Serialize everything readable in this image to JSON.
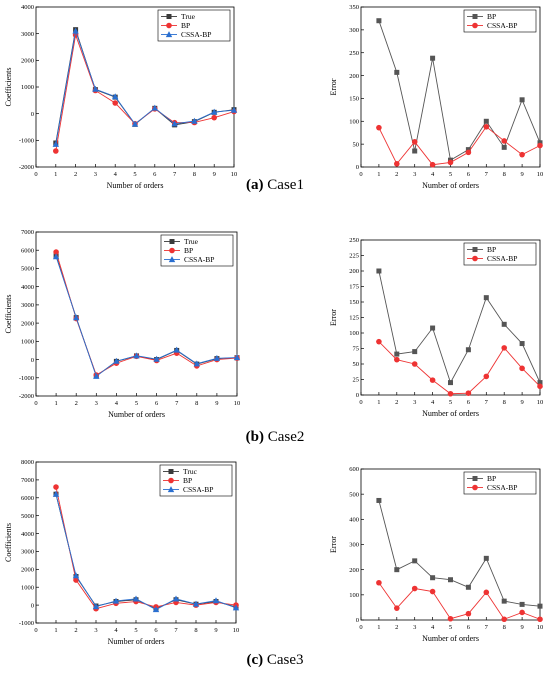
{
  "captions": [
    {
      "letter": "(a)",
      "text": " Case1"
    },
    {
      "letter": "(b)",
      "text": " Case2"
    },
    {
      "letter": "(c)",
      "text": " Case3"
    }
  ],
  "colors": {
    "true": "#3a3a3a",
    "bp": "#ee3333",
    "cssa": "#2a6fd0",
    "bp_err": "#555555"
  },
  "chart_data": [
    {
      "id": "case1-coefficients",
      "type": "line",
      "xlabel": "Number of orders",
      "ylabel": "Coefficients",
      "xlim": [
        0,
        10
      ],
      "ylim": [
        -2000,
        4000
      ],
      "xticks": [
        0,
        1,
        2,
        3,
        4,
        5,
        6,
        7,
        8,
        9,
        10
      ],
      "yticks": [
        -2000,
        -1000,
        0,
        1000,
        2000,
        3000,
        4000
      ],
      "x": [
        1,
        2,
        3,
        4,
        5,
        6,
        7,
        8,
        9,
        10
      ],
      "series": [
        {
          "name": "True",
          "marker": "square",
          "color": "#3a3a3a",
          "values": [
            -1100,
            3150,
            900,
            620,
            -400,
            200,
            -420,
            -300,
            50,
            150
          ]
        },
        {
          "name": "BP",
          "marker": "circle",
          "color": "#ee3333",
          "values": [
            -1400,
            2950,
            870,
            400,
            -380,
            180,
            -340,
            -330,
            -150,
            80
          ]
        },
        {
          "name": "CSSA-BP",
          "marker": "triangle",
          "color": "#2a6fd0",
          "values": [
            -1150,
            3100,
            920,
            640,
            -390,
            210,
            -380,
            -280,
            60,
            130
          ]
        }
      ],
      "legend": "top-right"
    },
    {
      "id": "case1-error",
      "type": "line",
      "xlabel": "Number of orders",
      "ylabel": "Error",
      "xlim": [
        0,
        10
      ],
      "ylim": [
        0,
        350
      ],
      "xticks": [
        0,
        1,
        2,
        3,
        4,
        5,
        6,
        7,
        8,
        9,
        10
      ],
      "yticks": [
        0,
        50,
        100,
        150,
        200,
        250,
        300,
        350
      ],
      "x": [
        1,
        2,
        3,
        4,
        5,
        6,
        7,
        8,
        9,
        10
      ],
      "series": [
        {
          "name": "BP",
          "marker": "square",
          "color": "#555555",
          "values": [
            320,
            207,
            35,
            238,
            15,
            38,
            100,
            43,
            147,
            53
          ]
        },
        {
          "name": "CSSA-BP",
          "marker": "circle",
          "color": "#ee3333",
          "values": [
            86,
            7,
            55,
            5,
            10,
            32,
            88,
            57,
            27,
            47
          ]
        }
      ],
      "legend": "top-right"
    },
    {
      "id": "case2-coefficients",
      "type": "line",
      "xlabel": "Number of orders",
      "ylabel": "Coefficients",
      "xlim": [
        0,
        10
      ],
      "ylim": [
        -2000,
        7000
      ],
      "xticks": [
        0,
        1,
        2,
        3,
        4,
        5,
        6,
        7,
        8,
        9,
        10
      ],
      "yticks": [
        -2000,
        -1000,
        0,
        1000,
        2000,
        3000,
        4000,
        5000,
        6000,
        7000
      ],
      "x": [
        1,
        2,
        3,
        4,
        5,
        6,
        7,
        8,
        9,
        10
      ],
      "series": [
        {
          "name": "True",
          "marker": "square",
          "color": "#3a3a3a",
          "values": [
            5700,
            2300,
            -900,
            -100,
            200,
            0,
            500,
            -250,
            50,
            100
          ]
        },
        {
          "name": "BP",
          "marker": "circle",
          "color": "#ee3333",
          "values": [
            5900,
            2250,
            -850,
            -200,
            180,
            -50,
            350,
            -350,
            0,
            80
          ]
        },
        {
          "name": "CSSA-BP",
          "marker": "triangle",
          "color": "#2a6fd0",
          "values": [
            5650,
            2300,
            -920,
            -90,
            210,
            20,
            520,
            -230,
            70,
            110
          ]
        }
      ],
      "legend": "top-right"
    },
    {
      "id": "case2-error",
      "type": "line",
      "xlabel": "Number of orders",
      "ylabel": "Error",
      "xlim": [
        0,
        10
      ],
      "ylim": [
        0,
        250
      ],
      "xticks": [
        0,
        1,
        2,
        3,
        4,
        5,
        6,
        7,
        8,
        9,
        10
      ],
      "yticks": [
        0,
        25,
        50,
        75,
        100,
        125,
        150,
        175,
        200,
        225,
        250
      ],
      "x": [
        1,
        2,
        3,
        4,
        5,
        6,
        7,
        8,
        9,
        10
      ],
      "series": [
        {
          "name": "BP",
          "marker": "square",
          "color": "#555555",
          "values": [
            200,
            66,
            70,
            108,
            20,
            73,
            157,
            114,
            83,
            20
          ]
        },
        {
          "name": "CSSA-BP",
          "marker": "circle",
          "color": "#ee3333",
          "values": [
            86,
            57,
            50,
            24,
            2,
            3,
            30,
            76,
            43,
            14
          ]
        }
      ],
      "legend": "top-right"
    },
    {
      "id": "case3-coefficients",
      "type": "line",
      "xlabel": "Number of orders",
      "ylabel": "Coefficients",
      "xlim": [
        0,
        10
      ],
      "ylim": [
        -1000,
        8000
      ],
      "xticks": [
        0,
        1,
        2,
        3,
        4,
        5,
        6,
        7,
        8,
        9,
        10
      ],
      "yticks": [
        -1000,
        0,
        1000,
        2000,
        3000,
        4000,
        5000,
        6000,
        7000,
        8000
      ],
      "x": [
        1,
        2,
        3,
        4,
        5,
        6,
        7,
        8,
        9,
        10
      ],
      "series": [
        {
          "name": "Truc",
          "marker": "square",
          "color": "#3a3a3a",
          "values": [
            6200,
            1600,
            -50,
            200,
            300,
            -200,
            300,
            50,
            200,
            -100
          ]
        },
        {
          "name": "BP",
          "marker": "circle",
          "color": "#ee3333",
          "values": [
            6600,
            1400,
            -200,
            100,
            200,
            -100,
            150,
            0,
            150,
            0
          ]
        },
        {
          "name": "CSSA-BP",
          "marker": "triangle",
          "color": "#2a6fd0",
          "values": [
            6200,
            1650,
            -80,
            230,
            350,
            -250,
            350,
            60,
            250,
            -150
          ]
        }
      ],
      "legend": "top-right"
    },
    {
      "id": "case3-error",
      "type": "line",
      "xlabel": "Number of orders",
      "ylabel": "Error",
      "xlim": [
        0,
        10
      ],
      "ylim": [
        0,
        600
      ],
      "xticks": [
        0,
        1,
        2,
        3,
        4,
        5,
        6,
        7,
        8,
        9,
        10
      ],
      "yticks": [
        0,
        100,
        200,
        300,
        400,
        500,
        600
      ],
      "x": [
        1,
        2,
        3,
        4,
        5,
        6,
        7,
        8,
        9,
        10
      ],
      "series": [
        {
          "name": "BP",
          "marker": "square",
          "color": "#555555",
          "values": [
            475,
            200,
            235,
            168,
            160,
            130,
            245,
            75,
            62,
            55
          ]
        },
        {
          "name": "CSSA-BP",
          "marker": "circle",
          "color": "#ee3333",
          "values": [
            148,
            47,
            125,
            113,
            5,
            25,
            110,
            3,
            30,
            3
          ]
        }
      ],
      "legend": "top-right"
    }
  ]
}
